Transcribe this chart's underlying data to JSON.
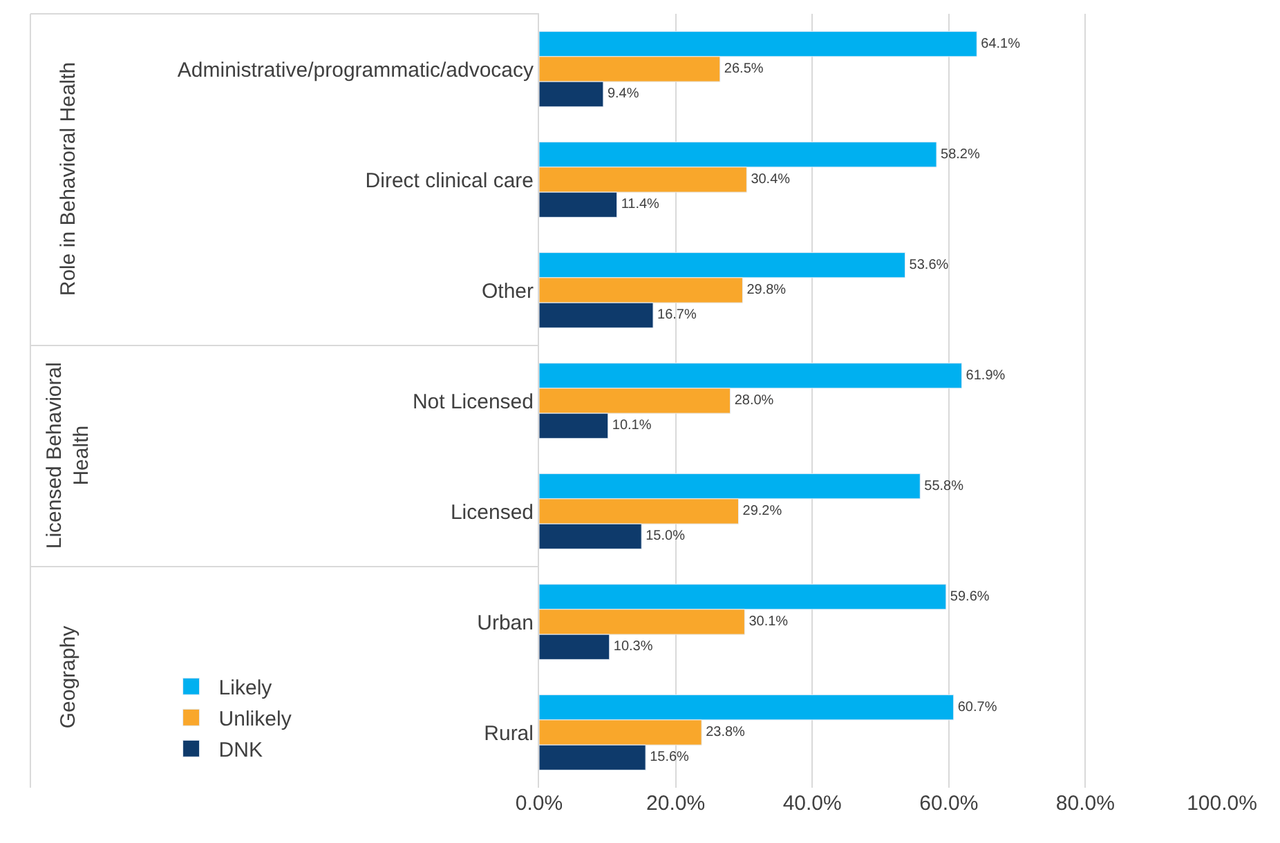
{
  "chart_data": {
    "type": "bar",
    "orientation": "horizontal",
    "categories": [
      "Administrative/programmatic/advocacy",
      "Direct clinical care",
      "Other",
      "Not Licensed",
      "Licensed",
      "Urban",
      "Rural"
    ],
    "series": [
      {
        "name": "Likely",
        "color": "#00b0f0",
        "values": [
          64.1,
          58.2,
          53.6,
          61.9,
          55.8,
          59.6,
          60.7
        ],
        "value_labels": [
          "64.1%",
          "58.2%",
          "53.6%",
          "61.9%",
          "55.8%",
          "59.6%",
          "60.7%"
        ]
      },
      {
        "name": "Unlikely",
        "color": "#f9a72b",
        "values": [
          26.5,
          30.4,
          29.8,
          28.0,
          29.2,
          30.1,
          23.8
        ],
        "value_labels": [
          "26.5%",
          "30.4%",
          "29.8%",
          "28.0%",
          "29.2%",
          "30.1%",
          "23.8%"
        ]
      },
      {
        "name": "DNK",
        "color": "#0e3a6b",
        "values": [
          9.4,
          11.4,
          16.7,
          10.1,
          15.0,
          10.3,
          15.6
        ],
        "value_labels": [
          "9.4%",
          "11.4%",
          "16.7%",
          "10.1%",
          "15.0%",
          "10.3%",
          "15.6%"
        ]
      }
    ],
    "annotations": [
      "Role in Behavioral Health",
      "Licensed Behavioral Health",
      "Geography"
    ],
    "xlim": [
      0,
      100
    ],
    "xticks": [
      {
        "value": 0,
        "label": "0.0%"
      },
      {
        "value": 20,
        "label": "20.0%"
      },
      {
        "value": 40,
        "label": "40.0%"
      },
      {
        "value": 60,
        "label": "60.0%"
      },
      {
        "value": 80,
        "label": "80.0%"
      },
      {
        "value": 100,
        "label": "100.0%"
      }
    ],
    "grid": "x",
    "legend": "bottom left"
  }
}
